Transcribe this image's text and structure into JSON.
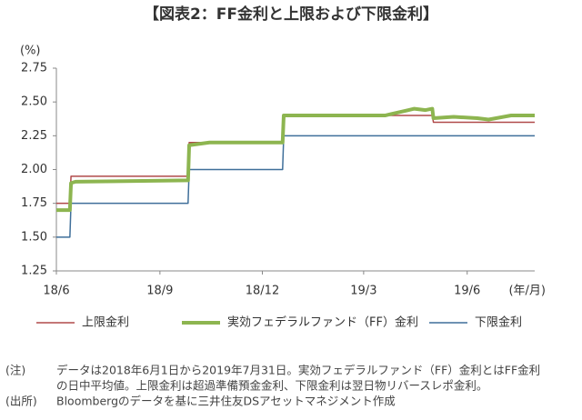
{
  "chart_data": {
    "type": "line",
    "title": "【図表2：FF金利と上限および下限金利】",
    "y_unit": "(%)",
    "x_unit": "(年/月)",
    "x": [
      "2018-06-01",
      "2018-06-13",
      "2018-06-14",
      "2018-06-18",
      "2018-09-26",
      "2018-09-27",
      "2018-10-15",
      "2018-12-19",
      "2018-12-20",
      "2019-03-20",
      "2019-03-25",
      "2019-04-10",
      "2019-04-15",
      "2019-04-25",
      "2019-05-01",
      "2019-05-02",
      "2019-05-20",
      "2019-06-10",
      "2019-06-20",
      "2019-07-10",
      "2019-07-31"
    ],
    "xlim": [
      "2018-06-01",
      "2019-07-31"
    ],
    "xticks": [
      {
        "value": "2018-06-01",
        "label": "18/6"
      },
      {
        "value": "2018-09-01",
        "label": "18/9"
      },
      {
        "value": "2018-12-01",
        "label": "18/12"
      },
      {
        "value": "2019-03-01",
        "label": "19/3"
      },
      {
        "value": "2019-06-01",
        "label": "19/6"
      }
    ],
    "ylim": [
      1.25,
      2.75
    ],
    "yticks": [
      {
        "value": 1.25,
        "label": "1.25"
      },
      {
        "value": 1.5,
        "label": "1.50"
      },
      {
        "value": 1.75,
        "label": "1.75"
      },
      {
        "value": 2,
        "label": "2.00"
      },
      {
        "value": 2.25,
        "label": "2.25"
      },
      {
        "value": 2.5,
        "label": "2.50"
      },
      {
        "value": 2.75,
        "label": "2.75"
      }
    ],
    "grid": false,
    "series": [
      {
        "name": "上限金利",
        "color": "#b04a4a",
        "width": 1.5,
        "values": [
          1.75,
          1.75,
          1.95,
          1.95,
          1.95,
          2.2,
          2.2,
          2.2,
          2.4,
          2.4,
          2.4,
          2.4,
          2.4,
          2.4,
          2.4,
          2.35,
          2.35,
          2.35,
          2.35,
          2.35,
          2.35
        ]
      },
      {
        "name": "下限金利",
        "color": "#3f6f9a",
        "width": 1.5,
        "values": [
          1.5,
          1.5,
          1.75,
          1.75,
          1.75,
          2.0,
          2.0,
          2.0,
          2.25,
          2.25,
          2.25,
          2.25,
          2.25,
          2.25,
          2.25,
          2.25,
          2.25,
          2.25,
          2.25,
          2.25,
          2.25
        ]
      },
      {
        "name": "実効フェデラルファンド（FF）金利",
        "color": "#8db550",
        "width": 4,
        "values": [
          1.7,
          1.7,
          1.9,
          1.91,
          1.92,
          2.18,
          2.2,
          2.2,
          2.4,
          2.4,
          2.41,
          2.44,
          2.45,
          2.44,
          2.45,
          2.38,
          2.39,
          2.38,
          2.37,
          2.4,
          2.4
        ]
      }
    ],
    "legend_order": [
      0,
      2,
      1
    ],
    "notes": [
      {
        "label": "(注)",
        "lines": [
          "データは2018年6月1日から2019年7月31日。実効フェデラルファンド（FF）金利とはFF金利",
          "の日中平均値。上限金利は超過準備預金金利、下限金利は翌日物リバースレポ金利。"
        ]
      },
      {
        "label": "(出所)",
        "lines": [
          "Bloombergのデータを基に三井住友DSアセットマネジメント作成"
        ]
      }
    ]
  }
}
